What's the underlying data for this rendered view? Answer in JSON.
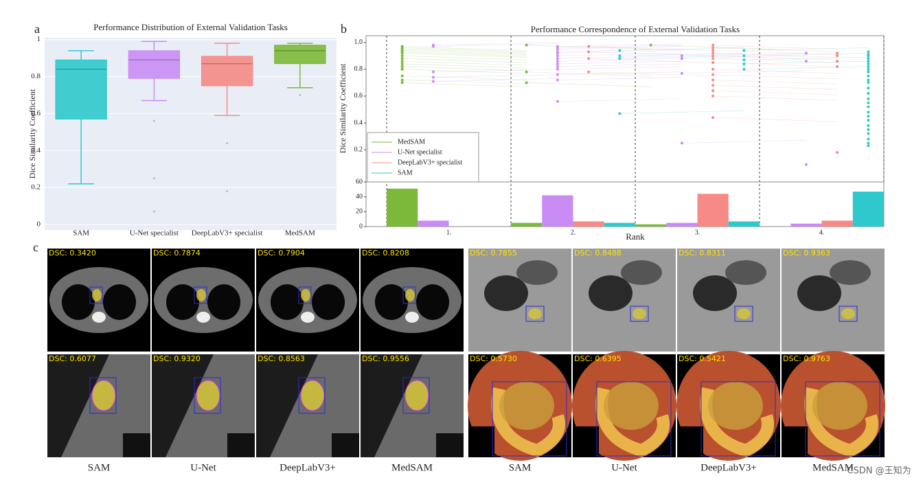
{
  "panel_labels": [
    "a",
    "b",
    "c"
  ],
  "chart_data": [
    {
      "type": "box",
      "title": "Performance Distribution of External Validation Tasks",
      "y_label": "Dice Similarity Coefficient",
      "categories": [
        "SAM",
        "U-Net specialist",
        "DeepLabV3+ specialist",
        "MedSAM"
      ],
      "colors": [
        "#2fc8cc",
        "#c98cf5",
        "#f58a86",
        "#7cb83a"
      ],
      "boxes": [
        {
          "low": 0.22,
          "q1": 0.57,
          "median": 0.84,
          "q3": 0.89,
          "high": 0.94,
          "outliers": []
        },
        {
          "low": 0.67,
          "q1": 0.79,
          "median": 0.89,
          "q3": 0.94,
          "high": 0.99,
          "outliers": [
            0.56,
            0.25,
            0.07
          ]
        },
        {
          "low": 0.59,
          "q1": 0.75,
          "median": 0.87,
          "q3": 0.91,
          "high": 0.98,
          "outliers": [
            0.44,
            0.18
          ]
        },
        {
          "low": 0.74,
          "q1": 0.87,
          "median": 0.94,
          "q3": 0.97,
          "high": 0.98,
          "outliers": [
            0.7
          ]
        }
      ],
      "ylim": [
        -0.03,
        1.01
      ],
      "yticks": [
        0,
        0.2,
        0.4,
        0.6,
        0.8,
        1
      ],
      "grid": true
    },
    {
      "type": "scatter",
      "title": "Performance Correspondence of External Validation Tasks",
      "y_label": "Dice Similarity Coefficient",
      "legend": "lower left",
      "series": [
        {
          "name": "MedSAM",
          "color": "#7cb83a",
          "points_by_rank": [
            [
              0.97,
              0.96,
              0.95,
              0.94,
              0.93,
              0.92,
              0.9,
              0.88,
              0.86,
              0.84,
              0.82,
              0.8,
              0.75,
              0.72,
              0.7
            ],
            [
              0.98,
              0.78,
              0.7
            ],
            [
              0.98
            ],
            []
          ]
        },
        {
          "name": "U-Net specialist",
          "color": "#c98cf5",
          "points_by_rank": [
            [
              0.98,
              0.97,
              0.78,
              0.74,
              0.71
            ],
            [
              0.97,
              0.96,
              0.95,
              0.93,
              0.92,
              0.9,
              0.88,
              0.86,
              0.84,
              0.82,
              0.8,
              0.76,
              0.72,
              0.56
            ],
            [
              0.9,
              0.88,
              0.77,
              0.25
            ],
            [
              0.92,
              0.86,
              0.09
            ]
          ]
        },
        {
          "name": "DeepLabV3+ specialist",
          "color": "#f58a86",
          "points_by_rank": [
            [],
            [
              0.97,
              0.93,
              0.88,
              0.78
            ],
            [
              0.98,
              0.96,
              0.94,
              0.92,
              0.9,
              0.88,
              0.85,
              0.8,
              0.76,
              0.72,
              0.68,
              0.64,
              0.6,
              0.44
            ],
            [
              0.92,
              0.9,
              0.86,
              0.82,
              0.18
            ]
          ]
        },
        {
          "name": "SAM",
          "color": "#2fc8cc",
          "points_by_rank": [
            [],
            [
              0.94,
              0.9,
              0.88,
              0.47
            ],
            [
              0.94,
              0.9,
              0.87,
              0.84,
              0.8
            ],
            [
              0.93,
              0.91,
              0.9,
              0.88,
              0.86,
              0.84,
              0.82,
              0.8,
              0.78,
              0.75,
              0.72,
              0.7,
              0.66,
              0.62,
              0.58,
              0.55,
              0.52,
              0.48,
              0.45,
              0.42,
              0.38,
              0.35,
              0.32,
              0.28,
              0.25,
              0.23
            ]
          ]
        }
      ],
      "ylim": [
        -0.04,
        1.05
      ],
      "yticks": [
        0.2,
        0.4,
        0.6,
        0.8,
        {
          "value": 1.0,
          "label": "1.0"
        }
      ]
    },
    {
      "type": "bar",
      "x_label": "Rank",
      "categories": [
        "1.",
        "2.",
        "3.",
        "4."
      ],
      "series": [
        {
          "color": "#7cb83a",
          "values": [
            51,
            5,
            3,
            0
          ]
        },
        {
          "color": "#c98cf5",
          "values": [
            8,
            42,
            5,
            4
          ]
        },
        {
          "color": "#f58a86",
          "values": [
            0,
            7,
            44,
            8
          ]
        },
        {
          "color": "#2fc8cc",
          "values": [
            0,
            5,
            7,
            47
          ]
        }
      ],
      "ylim": [
        0,
        60
      ],
      "yticks": [
        0,
        20,
        40,
        60
      ]
    }
  ],
  "tiles": [
    [
      "DSC: 0.3420",
      "DSC: 0.7874",
      "DSC: 0.7904",
      "DSC: 0.8208",
      "DSC: 0.7855",
      "DSC: 0.8488",
      "DSC: 0.8311",
      "DSC: 0.9363"
    ],
    [
      "DSC: 0.6077",
      "DSC: 0.9320",
      "DSC: 0.8563",
      "DSC: 0.9556",
      "DSC: 0.5730",
      "DSC: 0.6395",
      "DSC: 0.5421",
      "DSC: 0.9763"
    ]
  ],
  "captions": [
    "SAM",
    "U-Net",
    "DeepLabV3+",
    "MedSAM",
    "SAM",
    "U-Net",
    "DeepLabV3+",
    "MedSAM"
  ],
  "watermark": "CSDN @王知为"
}
